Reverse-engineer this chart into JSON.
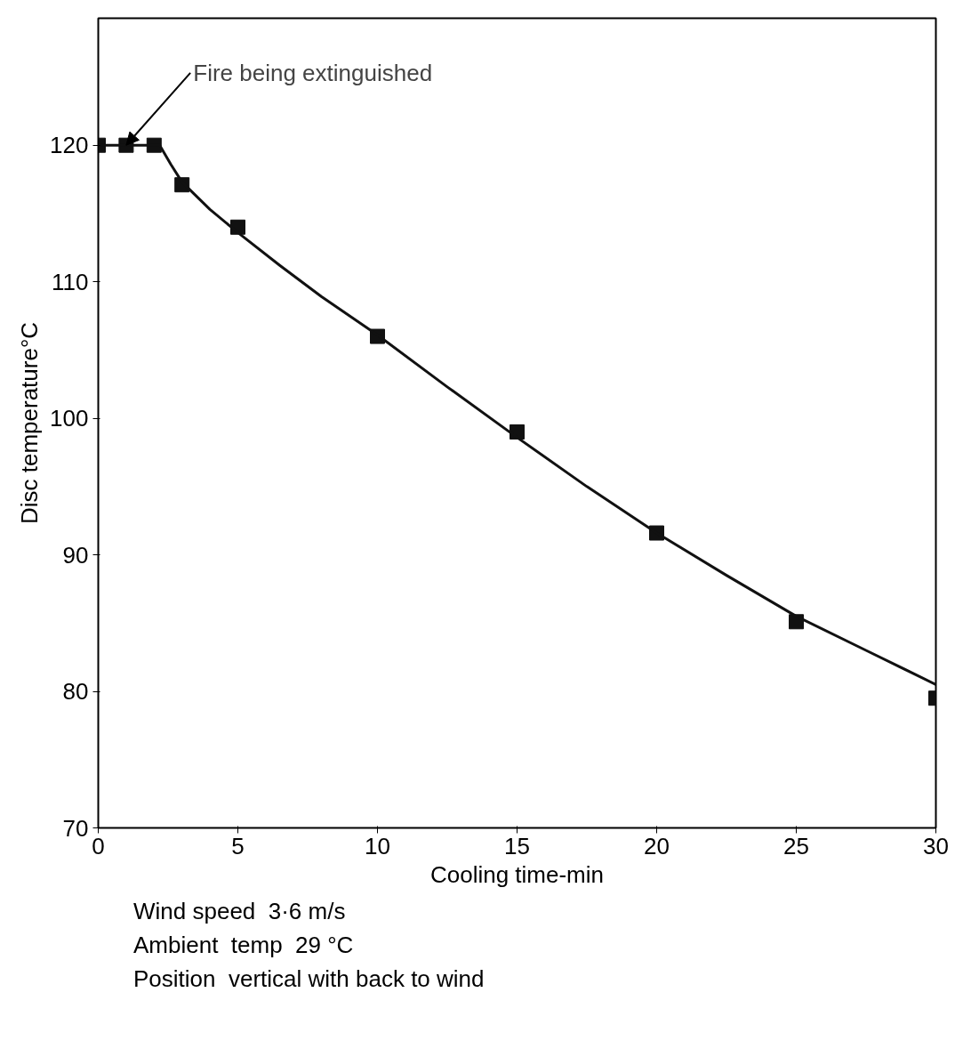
{
  "chart_data": {
    "type": "scatter",
    "xlabel": "Cooling time-min",
    "ylabel": "Disc temperature°C",
    "xlim": [
      0,
      30
    ],
    "ylim": [
      70,
      129.3
    ],
    "xticks": [
      0,
      5,
      10,
      15,
      20,
      25,
      30
    ],
    "yticks": [
      70,
      80,
      90,
      100,
      110,
      120
    ],
    "grid": false,
    "series": [
      {
        "marker": "square",
        "color": "#111111",
        "x": [
          0,
          1,
          2,
          3,
          5,
          10,
          15,
          20,
          25,
          30
        ],
        "values": [
          120,
          120,
          120,
          117.1,
          114,
          106,
          99,
          91.6,
          85.1,
          79.5
        ]
      },
      {
        "type": "line",
        "marker": "none",
        "color": "#111111",
        "line_style": "solid",
        "x": [
          0,
          2.2,
          2.6,
          3,
          4,
          5,
          6.5,
          8,
          10,
          12.5,
          15,
          17.5,
          20,
          22.5,
          25,
          27.5,
          30
        ],
        "values": [
          120,
          120,
          118.6,
          117.3,
          115.3,
          113.6,
          111.2,
          108.9,
          106.1,
          102.3,
          98.6,
          95,
          91.6,
          88.5,
          85.5,
          83,
          80.5
        ]
      }
    ],
    "annotations": [
      {
        "text": "Fire being extinguished",
        "x": 1,
        "y": 120
      },
      "Wind speed  3·6 m/s",
      "Ambient  temp  29 °C",
      "Position  vertical with back to wind"
    ]
  }
}
